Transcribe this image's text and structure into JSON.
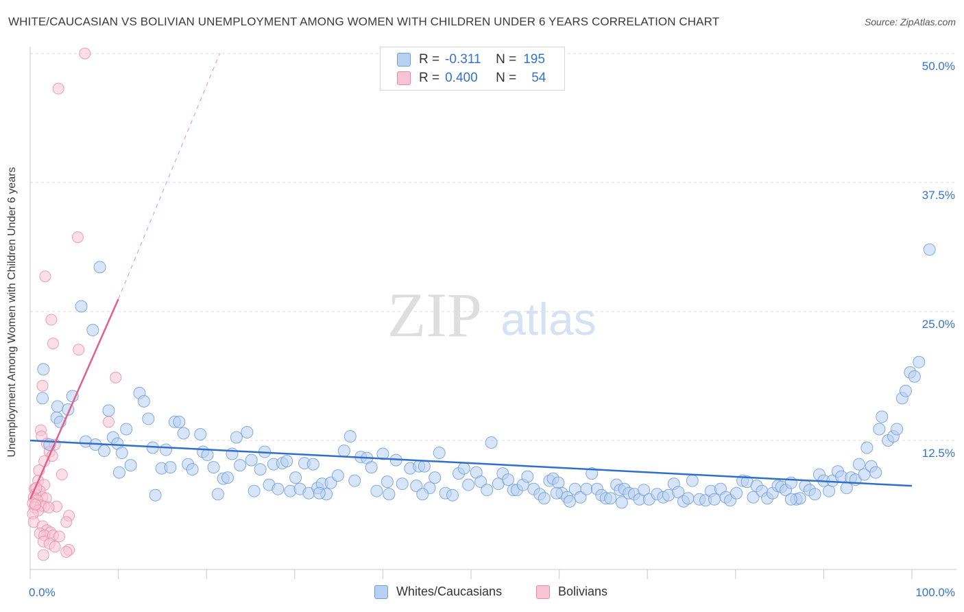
{
  "title": "WHITE/CAUCASIAN VS BOLIVIAN UNEMPLOYMENT AMONG WOMEN WITH CHILDREN UNDER 6 YEARS CORRELATION CHART",
  "source": "Source: ZipAtlas.com",
  "watermark": {
    "zip": "ZIP",
    "atlas": "atlas"
  },
  "legend": {
    "blue": {
      "r_label": "R = ",
      "r_value": "-0.311",
      "n_label": "N = ",
      "n_value": "195"
    },
    "pink": {
      "r_label": "R = ",
      "r_value": "0.400",
      "n_label": "N = ",
      "n_value": "54"
    }
  },
  "colors": {
    "blue_fill": "#b8d0f2",
    "blue_stroke": "#6f9ed8",
    "blue_line": "#2f6fcb",
    "pink_fill": "#f8c4d4",
    "pink_stroke": "#e78aa8",
    "pink_line": "#e0608a",
    "tick_label": "#3572c9",
    "grid": "#dcdcdc"
  },
  "chart_data": {
    "type": "scatter",
    "title": "WHITE/CAUCASIAN VS BOLIVIAN UNEMPLOYMENT AMONG WOMEN WITH CHILDREN UNDER 6 YEARS CORRELATION CHART",
    "xlabel": "",
    "ylabel": "Unemployment Among Women with Children Under 6 years",
    "xlim": [
      0,
      100
    ],
    "ylim": [
      0,
      50
    ],
    "x_tick_labels": [
      "0.0%",
      "100.0%"
    ],
    "y_ticks": [
      12.5,
      25.0,
      37.5,
      50.0
    ],
    "y_tick_labels": [
      "12.5%",
      "25.0%",
      "37.5%",
      "50.0%"
    ],
    "grid": true,
    "series": [
      {
        "name": "Whites/Caucasians",
        "color": "#6f9ed8",
        "trend": {
          "x0": 0,
          "y0": 12.5,
          "x1": 100,
          "y1": 8.1
        },
        "points": [
          [
            1.5,
            19.4
          ],
          [
            1.4,
            16.6
          ],
          [
            2.2,
            12.1
          ],
          [
            3.1,
            15.8
          ],
          [
            3.0,
            14.7
          ],
          [
            3.4,
            14.3
          ],
          [
            4.3,
            15.5
          ],
          [
            4.8,
            16.8
          ],
          [
            5.8,
            25.5
          ],
          [
            7.1,
            23.2
          ],
          [
            7.9,
            29.3
          ],
          [
            6.3,
            12.4
          ],
          [
            7.4,
            12.1
          ],
          [
            8.4,
            11.5
          ],
          [
            8.9,
            15.4
          ],
          [
            9.4,
            12.8
          ],
          [
            9.9,
            12.2
          ],
          [
            10.4,
            11.3
          ],
          [
            10.9,
            13.6
          ],
          [
            11.4,
            10.1
          ],
          [
            12.4,
            17.1
          ],
          [
            12.9,
            16.3
          ],
          [
            13.4,
            14.6
          ],
          [
            13.9,
            11.8
          ],
          [
            14.2,
            7.2
          ],
          [
            14.9,
            9.8
          ],
          [
            15.4,
            11.6
          ],
          [
            15.9,
            9.9
          ],
          [
            16.4,
            14.3
          ],
          [
            16.9,
            14.3
          ],
          [
            17.4,
            13.2
          ],
          [
            17.9,
            10.2
          ],
          [
            18.4,
            9.7
          ],
          [
            19.3,
            13.1
          ],
          [
            19.6,
            11.4
          ],
          [
            20.1,
            11.1
          ],
          [
            20.8,
            9.9
          ],
          [
            21.3,
            7.3
          ],
          [
            21.9,
            8.8
          ],
          [
            22.4,
            8.9
          ],
          [
            22.9,
            11.2
          ],
          [
            23.4,
            12.8
          ],
          [
            23.8,
            10.1
          ],
          [
            24.6,
            13.3
          ],
          [
            25.1,
            10.6
          ],
          [
            25.4,
            7.6
          ],
          [
            26.1,
            9.7
          ],
          [
            26.6,
            11.4
          ],
          [
            27.1,
            8.2
          ],
          [
            27.6,
            10.2
          ],
          [
            28.1,
            7.8
          ],
          [
            28.6,
            10.3
          ],
          [
            29.1,
            10.5
          ],
          [
            29.5,
            7.6
          ],
          [
            30.1,
            8.9
          ],
          [
            30.6,
            7.8
          ],
          [
            31.1,
            10.3
          ],
          [
            31.6,
            7.4
          ],
          [
            32.1,
            10.2
          ],
          [
            32.6,
            7.9
          ],
          [
            33.1,
            8.3
          ],
          [
            33.6,
            7.3
          ],
          [
            34.1,
            8.4
          ],
          [
            34.9,
            9.1
          ],
          [
            35.6,
            11.5
          ],
          [
            36.3,
            12.9
          ],
          [
            36.8,
            8.6
          ],
          [
            37.5,
            10.9
          ],
          [
            38.2,
            10.8
          ],
          [
            38.7,
            9.9
          ],
          [
            39.3,
            7.6
          ],
          [
            40.0,
            11.2
          ],
          [
            40.5,
            8.5
          ],
          [
            40.7,
            7.3
          ],
          [
            41.5,
            10.6
          ],
          [
            42.2,
            8.3
          ],
          [
            43.1,
            9.8
          ],
          [
            43.8,
            8.1
          ],
          [
            44.1,
            10.0
          ],
          [
            44.7,
            10.0
          ],
          [
            45.3,
            7.9
          ],
          [
            45.9,
            8.9
          ],
          [
            46.4,
            11.3
          ],
          [
            47.1,
            7.4
          ],
          [
            47.9,
            7.2
          ],
          [
            48.6,
            9.3
          ],
          [
            49.2,
            9.8
          ],
          [
            49.7,
            8.2
          ],
          [
            50.6,
            9.4
          ],
          [
            51.1,
            8.5
          ],
          [
            51.8,
            7.7
          ],
          [
            52.3,
            12.3
          ],
          [
            53.1,
            8.3
          ],
          [
            53.6,
            9.3
          ],
          [
            54.2,
            8.7
          ],
          [
            54.8,
            7.7
          ],
          [
            55.2,
            7.7
          ],
          [
            55.9,
            8.2
          ],
          [
            56.4,
            9.0
          ],
          [
            57.1,
            7.8
          ],
          [
            57.8,
            7.3
          ],
          [
            58.3,
            6.9
          ],
          [
            58.9,
            8.6
          ],
          [
            59.3,
            8.8
          ],
          [
            59.9,
            8.4
          ],
          [
            60.3,
            7.4
          ],
          [
            60.9,
            7.0
          ],
          [
            61.2,
            6.6
          ],
          [
            61.8,
            7.8
          ],
          [
            62.4,
            7.0
          ],
          [
            63.1,
            7.8
          ],
          [
            63.7,
            9.3
          ],
          [
            64.3,
            7.8
          ],
          [
            64.8,
            7.2
          ],
          [
            65.3,
            6.9
          ],
          [
            65.8,
            6.9
          ],
          [
            66.5,
            8.2
          ],
          [
            66.9,
            7.7
          ],
          [
            67.4,
            7.8
          ],
          [
            67.9,
            7.4
          ],
          [
            68.5,
            7.3
          ],
          [
            69.1,
            6.8
          ],
          [
            69.6,
            7.7
          ],
          [
            70.2,
            6.8
          ],
          [
            71.1,
            7.3
          ],
          [
            71.8,
            7.0
          ],
          [
            72.4,
            7.2
          ],
          [
            73.0,
            8.3
          ],
          [
            73.5,
            7.5
          ],
          [
            74.1,
            6.6
          ],
          [
            74.6,
            6.9
          ],
          [
            75.1,
            8.6
          ],
          [
            75.9,
            6.8
          ],
          [
            76.6,
            6.7
          ],
          [
            77.2,
            7.6
          ],
          [
            77.6,
            6.8
          ],
          [
            78.3,
            7.8
          ],
          [
            78.9,
            7.0
          ],
          [
            79.4,
            6.7
          ],
          [
            80.1,
            7.4
          ],
          [
            80.8,
            8.6
          ],
          [
            81.3,
            8.5
          ],
          [
            82.0,
            7.0
          ],
          [
            82.4,
            8.1
          ],
          [
            83.0,
            7.6
          ],
          [
            83.6,
            6.9
          ],
          [
            84.2,
            7.4
          ],
          [
            84.8,
            8.1
          ],
          [
            85.2,
            8.0
          ],
          [
            85.7,
            7.7
          ],
          [
            86.3,
            8.4
          ],
          [
            86.9,
            6.8
          ],
          [
            87.3,
            6.9
          ],
          [
            87.9,
            8.1
          ],
          [
            88.4,
            7.7
          ],
          [
            89.0,
            7.3
          ],
          [
            89.5,
            9.2
          ],
          [
            90.0,
            8.6
          ],
          [
            90.6,
            7.6
          ],
          [
            91.0,
            8.6
          ],
          [
            91.6,
            9.5
          ],
          [
            92.0,
            9.0
          ],
          [
            92.6,
            7.9
          ],
          [
            93.1,
            8.9
          ],
          [
            93.6,
            8.7
          ],
          [
            94.0,
            10.2
          ],
          [
            94.6,
            9.2
          ],
          [
            94.9,
            11.8
          ],
          [
            95.4,
            10.0
          ],
          [
            95.9,
            9.4
          ],
          [
            96.3,
            13.6
          ],
          [
            96.6,
            14.8
          ],
          [
            97.3,
            12.5
          ],
          [
            97.9,
            12.9
          ],
          [
            98.3,
            13.6
          ],
          [
            98.9,
            16.6
          ],
          [
            99.3,
            17.3
          ],
          [
            99.8,
            19.1
          ],
          [
            100.3,
            18.7
          ],
          [
            100.8,
            20.1
          ],
          [
            102.0,
            31.0
          ],
          [
            10.1,
            9.4
          ],
          [
            32.8,
            7.4
          ],
          [
            44.5,
            7.3
          ],
          [
            59.7,
            7.4
          ],
          [
            67.1,
            6.5
          ],
          [
            86.3,
            6.8
          ]
        ]
      },
      {
        "name": "Bolivians",
        "color": "#e78aa8",
        "trend": {
          "x0": 0,
          "y0": 6.8,
          "x1": 10,
          "y1": 26.2,
          "dash_to_x": 21.5,
          "dash_to_y": 50.0
        },
        "points": [
          [
            6.2,
            50.0
          ],
          [
            3.2,
            46.6
          ],
          [
            5.4,
            32.2
          ],
          [
            1.7,
            28.4
          ],
          [
            2.4,
            24.2
          ],
          [
            2.6,
            21.9
          ],
          [
            5.5,
            21.3
          ],
          [
            9.7,
            18.6
          ],
          [
            1.4,
            17.8
          ],
          [
            8.9,
            14.3
          ],
          [
            1.2,
            13.5
          ],
          [
            1.3,
            12.9
          ],
          [
            1.9,
            12.2
          ],
          [
            2.2,
            11.4
          ],
          [
            2.5,
            11.0
          ],
          [
            2.8,
            12.1
          ],
          [
            1.6,
            10.5
          ],
          [
            1.0,
            9.6
          ],
          [
            3.6,
            9.2
          ],
          [
            0.9,
            8.6
          ],
          [
            1.6,
            8.2
          ],
          [
            0.5,
            7.8
          ],
          [
            1.1,
            7.6
          ],
          [
            0.6,
            7.3
          ],
          [
            1.4,
            7.0
          ],
          [
            0.4,
            7.0
          ],
          [
            1.8,
            6.9
          ],
          [
            0.8,
            6.7
          ],
          [
            0.3,
            6.4
          ],
          [
            1.2,
            6.2
          ],
          [
            1.6,
            6.1
          ],
          [
            0.5,
            6.0
          ],
          [
            3.0,
            6.1
          ],
          [
            2.1,
            6.0
          ],
          [
            0.9,
            5.7
          ],
          [
            0.3,
            5.4
          ],
          [
            4.4,
            5.2
          ],
          [
            0.4,
            4.6
          ],
          [
            4.1,
            4.6
          ],
          [
            1.4,
            4.2
          ],
          [
            1.9,
            3.8
          ],
          [
            2.3,
            3.6
          ],
          [
            1.1,
            3.5
          ],
          [
            1.6,
            3.3
          ],
          [
            2.6,
            3.3
          ],
          [
            3.3,
            3.2
          ],
          [
            1.5,
            2.7
          ],
          [
            2.2,
            2.5
          ],
          [
            2.8,
            2.2
          ],
          [
            4.4,
            1.9
          ],
          [
            1.5,
            1.4
          ],
          [
            4.1,
            1.7
          ],
          [
            0.7,
            7.9
          ],
          [
            0.6,
            6.3
          ]
        ]
      }
    ]
  }
}
